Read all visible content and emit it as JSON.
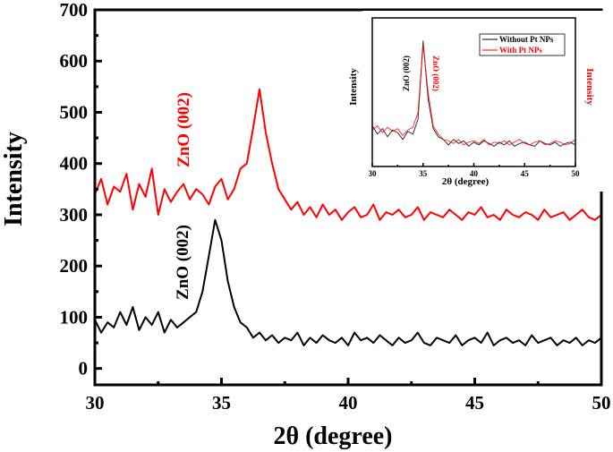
{
  "chart_data": [
    {
      "type": "line",
      "xlabel": "2θ (degree)",
      "ylabel": "Intensity",
      "xlim": [
        30,
        50
      ],
      "ylim": [
        -32,
        700
      ],
      "xticks": [
        30,
        35,
        40,
        45,
        50
      ],
      "yticks": [
        0,
        100,
        200,
        300,
        400,
        500,
        600,
        700
      ],
      "grid": false,
      "x_step": 0.25,
      "x_start": 30,
      "series": [
        {
          "color": "#ff0000",
          "values": [
            340,
            370,
            320,
            355,
            345,
            380,
            310,
            360,
            335,
            390,
            300,
            350,
            325,
            345,
            360,
            330,
            350,
            340,
            320,
            355,
            370,
            330,
            350,
            390,
            400,
            470,
            545,
            460,
            400,
            350,
            330,
            310,
            325,
            300,
            315,
            295,
            320,
            300,
            310,
            290,
            305,
            315,
            295,
            300,
            320,
            290,
            305,
            300,
            310,
            295,
            300,
            315,
            290,
            305,
            300,
            295,
            310,
            300,
            290,
            305,
            300,
            315,
            295,
            300,
            290,
            310,
            300,
            295,
            305,
            300,
            290,
            310,
            295,
            300,
            305,
            290,
            300,
            310,
            295,
            290,
            300
          ]
        },
        {
          "color": "#000000",
          "values": [
            95,
            70,
            90,
            80,
            110,
            85,
            120,
            75,
            100,
            85,
            110,
            70,
            95,
            80,
            90,
            100,
            110,
            150,
            220,
            290,
            250,
            170,
            120,
            90,
            80,
            60,
            70,
            55,
            65,
            50,
            60,
            55,
            70,
            45,
            60,
            50,
            65,
            55,
            50,
            60,
            45,
            70,
            55,
            60,
            50,
            65,
            55,
            45,
            60,
            50,
            55,
            70,
            50,
            45,
            60,
            55,
            50,
            65,
            45,
            55,
            60,
            50,
            70,
            45,
            55,
            60,
            50,
            55,
            45,
            65,
            50,
            55,
            60,
            45,
            55,
            50,
            60,
            45,
            55,
            50,
            60
          ]
        }
      ],
      "annotations": [
        {
          "text": "ZnO (002)",
          "color": "#ff0000"
        },
        {
          "text": "ZnO (002)",
          "color": "#000000"
        }
      ]
    },
    {
      "type": "line",
      "role": "inset",
      "xlabel": "2θ (degree)",
      "ylabel_left": "Intensity",
      "ylabel_right": "Intensity",
      "xlim": [
        30,
        50
      ],
      "ylim": [
        0,
        1.1
      ],
      "xticks": [
        30,
        35,
        40,
        45,
        50
      ],
      "x_step": 0.5,
      "x_start": 30,
      "legend": "top-right",
      "series": [
        {
          "name": "Without Pt NPs",
          "color": "#000000",
          "values": [
            0.3,
            0.24,
            0.28,
            0.22,
            0.27,
            0.25,
            0.2,
            0.26,
            0.24,
            0.35,
            0.93,
            0.5,
            0.28,
            0.22,
            0.2,
            0.16,
            0.2,
            0.17,
            0.19,
            0.15,
            0.18,
            0.16,
            0.19,
            0.17,
            0.15,
            0.18,
            0.16,
            0.19,
            0.15,
            0.17,
            0.18,
            0.16,
            0.15,
            0.19,
            0.17,
            0.16,
            0.18,
            0.15,
            0.17,
            0.18,
            0.16
          ]
        },
        {
          "name": "With Pt NPs",
          "color": "#ff0000",
          "values": [
            0.27,
            0.3,
            0.25,
            0.29,
            0.26,
            0.28,
            0.23,
            0.27,
            0.29,
            0.4,
            0.9,
            0.55,
            0.3,
            0.24,
            0.2,
            0.19,
            0.17,
            0.2,
            0.16,
            0.18,
            0.19,
            0.17,
            0.2,
            0.16,
            0.18,
            0.17,
            0.19,
            0.16,
            0.18,
            0.2,
            0.17,
            0.16,
            0.18,
            0.19,
            0.16,
            0.17,
            0.19,
            0.18,
            0.16,
            0.17,
            0.2
          ]
        }
      ],
      "annotations": [
        {
          "text": "ZnO (002)",
          "color": "#000000"
        },
        {
          "text": "ZnO (002)",
          "color": "#ff0000"
        }
      ]
    }
  ]
}
